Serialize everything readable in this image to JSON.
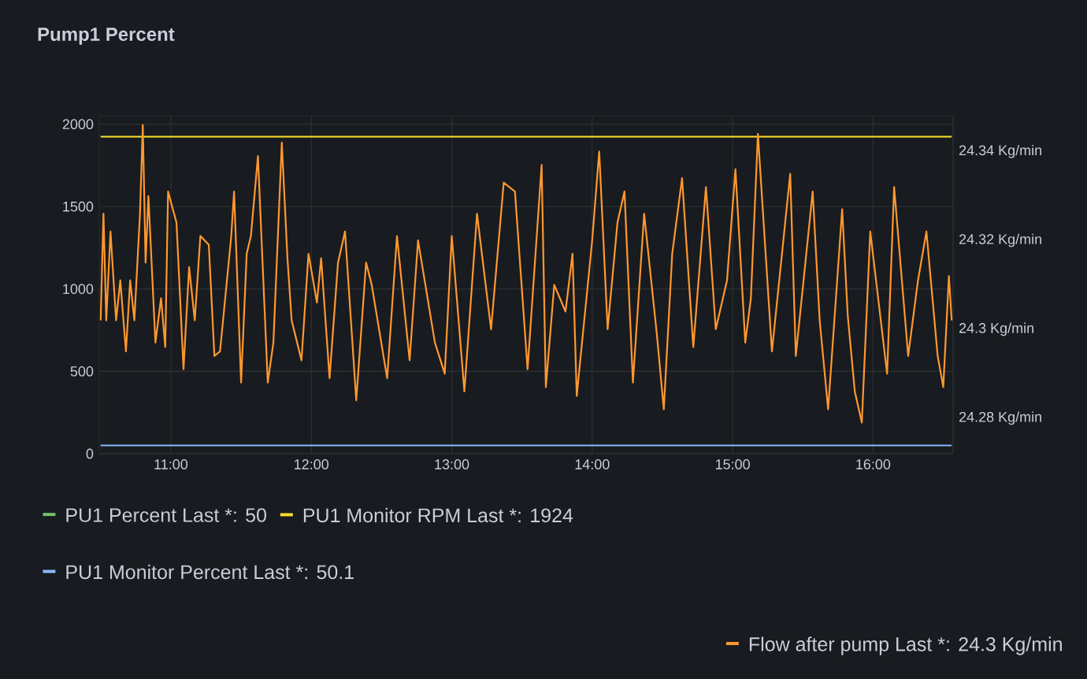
{
  "chart_data": {
    "type": "line",
    "title": "Pump1 Percent",
    "xlim": [
      10.49,
      16.57
    ],
    "xticks": [
      {
        "value": 11,
        "label": "11:00"
      },
      {
        "value": 12,
        "label": "12:00"
      },
      {
        "value": 13,
        "label": "13:00"
      },
      {
        "value": 14,
        "label": "14:00"
      },
      {
        "value": 15,
        "label": "15:00"
      },
      {
        "value": 16,
        "label": "16:00"
      }
    ],
    "ylim": [
      0,
      2050
    ],
    "yticks": [
      0,
      500,
      1000,
      1500,
      2000
    ],
    "y2lim": [
      24.272,
      24.348
    ],
    "y2ticks": [
      {
        "value": 24.28,
        "label": "24.28 Kg/min"
      },
      {
        "value": 24.3,
        "label": "24.3 Kg/min"
      },
      {
        "value": 24.32,
        "label": "24.32 Kg/min"
      },
      {
        "value": 24.34,
        "label": "24.34 Kg/min"
      }
    ],
    "grid": true,
    "legend": "bottom",
    "series": [
      {
        "name": "PU1 Percent Last *: 50",
        "color": "#73bf69",
        "values": [
          null,
          null
        ]
      },
      {
        "name": "PU1 Monitor RPM Last *: 1924",
        "color": "#fade2a",
        "x": [
          10.5,
          16.56
        ],
        "values": [
          1924,
          1924
        ]
      },
      {
        "name": "PU1 Monitor Percent Last *: 50.1",
        "color": "#8ab8ff",
        "x": [
          10.5,
          16.56
        ],
        "values": [
          50.1,
          50.1
        ]
      },
      {
        "name": "Flow after pump Last *: 24.3 Kg/min",
        "color": "#ff9830",
        "axis": "y2",
        "x": [
          10.5,
          10.52,
          10.54,
          10.57,
          10.61,
          10.64,
          10.68,
          10.71,
          10.74,
          10.78,
          10.8,
          10.82,
          10.84,
          10.89,
          10.93,
          10.96,
          10.98,
          11.04,
          11.09,
          11.13,
          11.17,
          11.21,
          11.27,
          11.31,
          11.35,
          11.43,
          11.45,
          11.5,
          11.54,
          11.57,
          11.62,
          11.65,
          11.69,
          11.73,
          11.79,
          11.83,
          11.86,
          11.93,
          11.98,
          12.04,
          12.07,
          12.13,
          12.19,
          12.24,
          12.32,
          12.39,
          12.43,
          12.54,
          12.61,
          12.7,
          12.76,
          12.88,
          12.95,
          13.0,
          13.09,
          13.18,
          13.28,
          13.37,
          13.45,
          13.54,
          13.64,
          13.67,
          13.73,
          13.81,
          13.86,
          13.89,
          14.0,
          14.05,
          14.11,
          14.18,
          14.23,
          14.29,
          14.37,
          14.46,
          14.51,
          14.57,
          14.64,
          14.72,
          14.81,
          14.88,
          14.96,
          15.02,
          15.09,
          15.13,
          15.18,
          15.28,
          15.41,
          15.45,
          15.57,
          15.62,
          15.68,
          15.78,
          15.82,
          15.87,
          15.92,
          15.98,
          16.1,
          16.15,
          16.25,
          16.32,
          16.38,
          16.46,
          16.5,
          16.54,
          16.56
        ],
        "values": [
          24.302,
          24.326,
          24.302,
          24.322,
          24.302,
          24.311,
          24.295,
          24.311,
          24.302,
          24.326,
          24.346,
          24.315,
          24.33,
          24.297,
          24.307,
          24.296,
          24.331,
          24.324,
          24.291,
          24.314,
          24.302,
          24.321,
          24.319,
          24.294,
          24.295,
          24.321,
          24.331,
          24.288,
          24.317,
          24.321,
          24.339,
          24.317,
          24.288,
          24.297,
          24.342,
          24.316,
          24.302,
          24.293,
          24.317,
          24.306,
          24.316,
          24.289,
          24.315,
          24.322,
          24.284,
          24.315,
          24.31,
          24.289,
          24.321,
          24.293,
          24.32,
          24.297,
          24.29,
          24.321,
          24.286,
          24.326,
          24.3,
          24.333,
          24.331,
          24.291,
          24.337,
          24.287,
          24.31,
          24.304,
          24.317,
          24.285,
          24.32,
          24.34,
          24.3,
          24.324,
          24.331,
          24.288,
          24.326,
          24.299,
          24.282,
          24.317,
          24.334,
          24.296,
          24.332,
          24.3,
          24.311,
          24.336,
          24.297,
          24.307,
          24.344,
          24.295,
          24.335,
          24.294,
          24.331,
          24.302,
          24.282,
          24.327,
          24.303,
          24.286,
          24.279,
          24.322,
          24.29,
          24.332,
          24.294,
          24.311,
          24.322,
          24.294,
          24.287,
          24.312,
          24.302
        ]
      }
    ]
  }
}
